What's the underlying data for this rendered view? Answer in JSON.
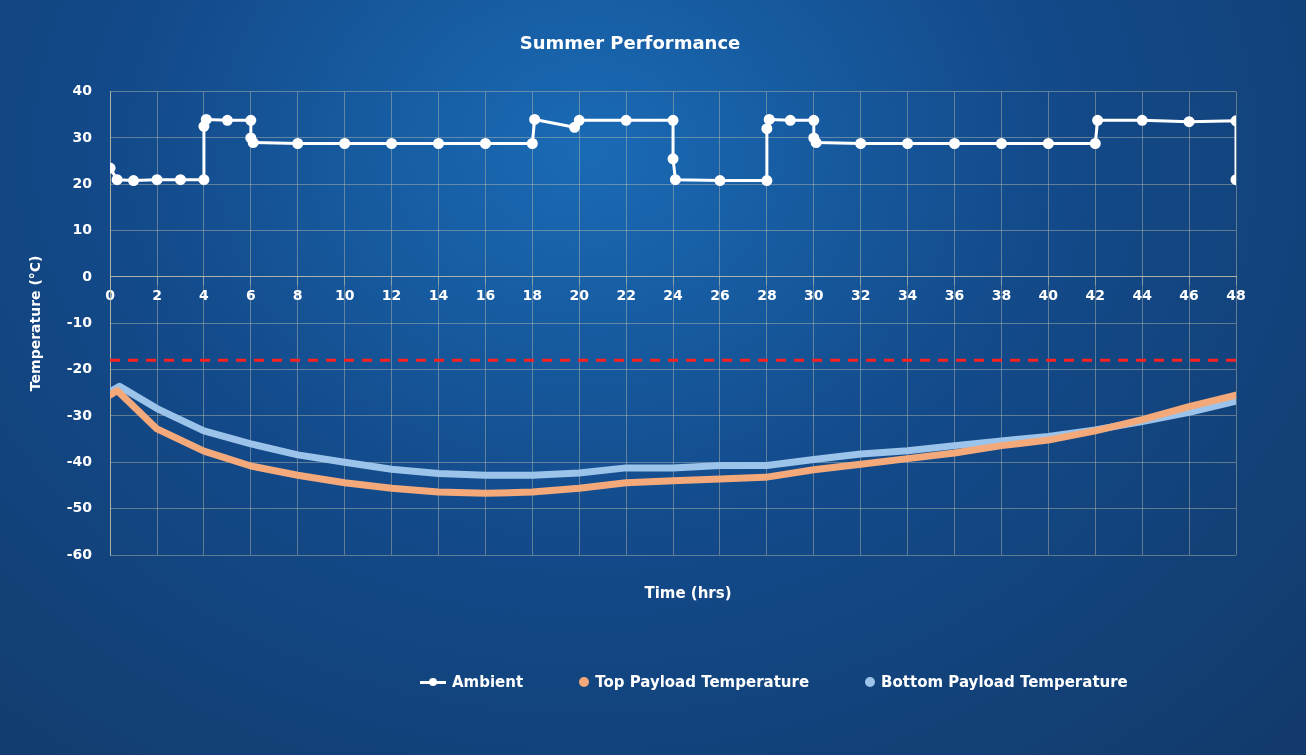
{
  "chart_data": {
    "type": "line",
    "title": "Summer Performance",
    "xlabel": "Time (hrs)",
    "ylabel": "Temperature (°C)",
    "xlim": [
      0,
      48
    ],
    "xticks": [
      0,
      2,
      4,
      6,
      8,
      10,
      12,
      14,
      16,
      18,
      20,
      22,
      24,
      26,
      28,
      30,
      32,
      34,
      36,
      38,
      40,
      42,
      44,
      46,
      48
    ],
    "ylim": [
      -60,
      40
    ],
    "yticks": [
      -60,
      -50,
      -40,
      -30,
      -20,
      -10,
      0,
      10,
      20,
      30,
      40
    ],
    "grid": true,
    "legend": "bottom",
    "ref_lines": [
      {
        "axis": "y",
        "value": -18,
        "color": "#ff2020",
        "line_style": "dashed"
      }
    ],
    "series": [
      {
        "name": "Ambient",
        "color": "#ffffff",
        "marker": "circle",
        "x": [
          0,
          0.3,
          1,
          2,
          3,
          4,
          4,
          4.1,
          5,
          6,
          6,
          6.1,
          8,
          10,
          12,
          14,
          16,
          18,
          18.1,
          19.8,
          20,
          22,
          24,
          24,
          24.1,
          26,
          28,
          28,
          28.1,
          29,
          30,
          30,
          30.1,
          32,
          34,
          36,
          38,
          40,
          42,
          42.1,
          44,
          46,
          48,
          48
        ],
        "values": [
          23.5,
          21,
          20.8,
          21,
          21,
          21,
          32.5,
          34,
          33.8,
          33.8,
          30,
          29,
          28.8,
          28.8,
          28.8,
          28.8,
          28.8,
          28.8,
          34,
          32.3,
          33.8,
          33.8,
          33.8,
          25.5,
          21,
          20.8,
          20.8,
          32,
          34,
          33.8,
          33.8,
          30,
          29,
          28.8,
          28.8,
          28.8,
          28.8,
          28.8,
          28.8,
          33.8,
          33.8,
          33.5,
          33.7,
          21
        ]
      },
      {
        "name": "Top Payload Temperature",
        "color": "#f4a97a",
        "x": [
          0,
          0.3,
          2,
          4,
          6,
          8,
          10,
          12,
          14,
          16,
          18,
          20,
          22,
          24,
          26,
          28,
          30,
          32,
          34,
          36,
          38,
          40,
          42,
          44,
          46,
          48
        ],
        "values": [
          -25.5,
          -24.5,
          -32.8,
          -37.6,
          -40.8,
          -42.8,
          -44.4,
          -45.6,
          -46.4,
          -46.7,
          -46.4,
          -45.6,
          -44.4,
          -44,
          -43.6,
          -43.2,
          -41.6,
          -40.4,
          -39.2,
          -38,
          -36.4,
          -35.2,
          -33.2,
          -30.8,
          -28,
          -25.5
        ]
      },
      {
        "name": "Bottom Payload Temperature",
        "color": "#9cc3ea",
        "x": [
          0,
          0.4,
          2,
          4,
          6,
          8,
          10,
          12,
          14,
          16,
          18,
          20,
          22,
          24,
          26,
          28,
          30,
          32,
          34,
          36,
          38,
          40,
          42,
          44,
          46,
          48
        ],
        "values": [
          -24.8,
          -23.6,
          -28.4,
          -33.2,
          -36,
          -38.4,
          -40,
          -41.5,
          -42.4,
          -42.8,
          -42.8,
          -42.3,
          -41.2,
          -41.2,
          -40.7,
          -40.7,
          -39.4,
          -38.2,
          -37.5,
          -36.4,
          -35.4,
          -34.4,
          -33,
          -31.2,
          -29.2,
          -26.8
        ]
      }
    ]
  }
}
